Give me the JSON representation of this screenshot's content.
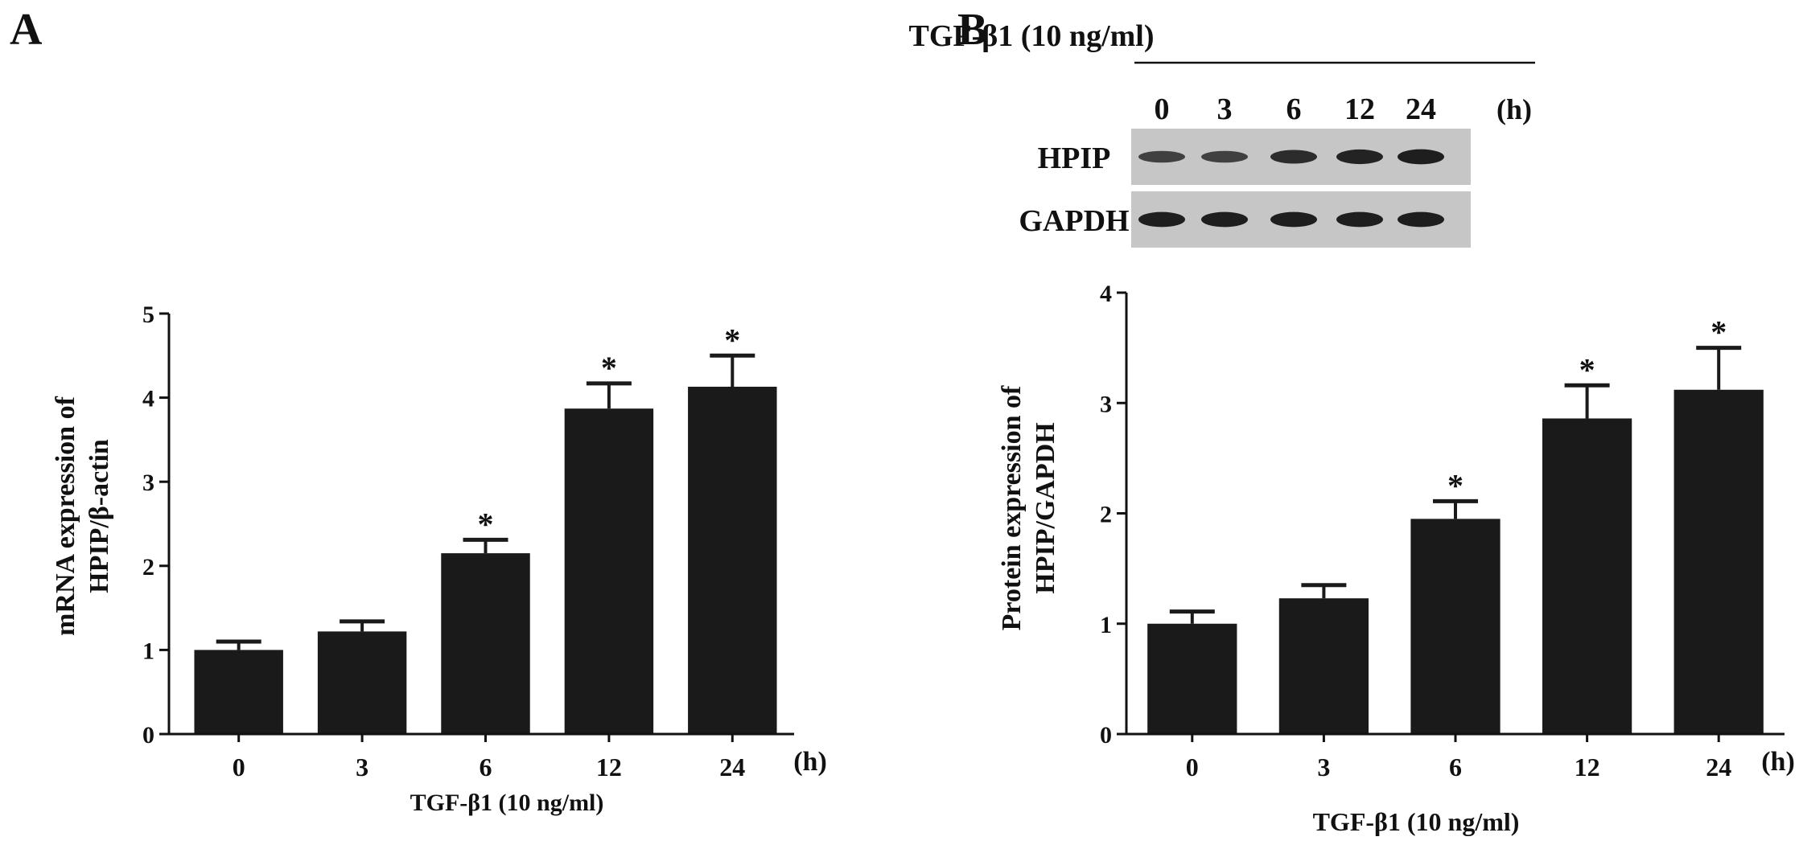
{
  "panels": {
    "a_label": "A",
    "b_label": "B"
  },
  "blot": {
    "treatment_label": "TGF-β1  (10 ng/ml)",
    "time_points": [
      "0",
      "3",
      "6",
      "12",
      "24"
    ],
    "time_unit": "(h)",
    "rows": [
      {
        "label": "HPIP",
        "band_intensity": [
          0.55,
          0.55,
          0.75,
          0.85,
          0.9
        ]
      },
      {
        "label": "GAPDH",
        "band_intensity": [
          0.9,
          0.9,
          0.9,
          0.9,
          0.9
        ]
      }
    ]
  },
  "colors": {
    "bar": "#1a1a1a",
    "axis": "#111111",
    "blot_bg": "#c6c6c6",
    "band": "#141414"
  },
  "chart_data": [
    {
      "type": "bar",
      "categories": [
        "0",
        "3",
        "6",
        "12",
        "24"
      ],
      "values": [
        1.0,
        1.22,
        2.15,
        3.87,
        4.13
      ],
      "errors": [
        0.1,
        0.12,
        0.16,
        0.3,
        0.37
      ],
      "significant": [
        false,
        false,
        true,
        true,
        true
      ],
      "significance_marker": "*",
      "ylabel": [
        "mRNA expression of",
        "HPIP/β-actin"
      ],
      "xlabel": "TGF-β1 (10 ng/ml)",
      "x_unit": "(h)",
      "ylim": [
        0,
        5
      ],
      "yticks": [
        0,
        1,
        2,
        3,
        4,
        5
      ],
      "grid": false
    },
    {
      "type": "bar",
      "categories": [
        "0",
        "3",
        "6",
        "12",
        "24"
      ],
      "values": [
        1.0,
        1.23,
        1.95,
        2.86,
        3.12
      ],
      "errors": [
        0.11,
        0.12,
        0.16,
        0.3,
        0.38
      ],
      "significant": [
        false,
        false,
        true,
        true,
        true
      ],
      "significance_marker": "*",
      "ylabel": [
        "Protein expression of",
        "HPIP/GAPDH"
      ],
      "xlabel": "TGF-β1  (10 ng/ml)",
      "x_unit": "(h)",
      "ylim": [
        0,
        4
      ],
      "yticks": [
        0,
        1,
        2,
        3,
        4
      ],
      "grid": false
    }
  ]
}
